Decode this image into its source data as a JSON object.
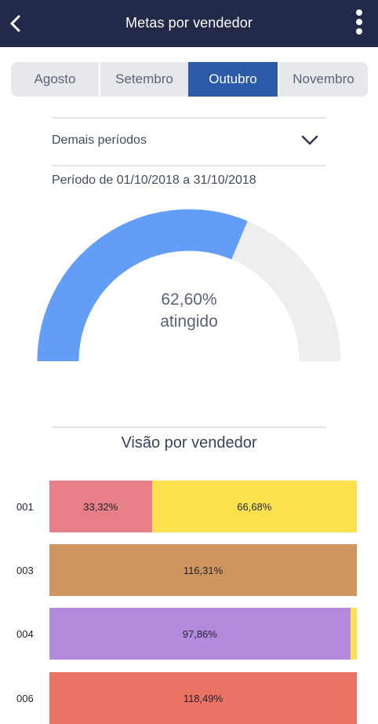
{
  "header": {
    "title": "Metas por vendedor",
    "back_icon": "chevron-left-icon",
    "menu_icon": "more-vertical-icon"
  },
  "months": [
    {
      "label": "Agosto",
      "active": false
    },
    {
      "label": "Setembro",
      "active": false
    },
    {
      "label": "Outubro",
      "active": true
    },
    {
      "label": "Novembro",
      "active": false
    }
  ],
  "periods": {
    "dropdown_label": "Demais períodos",
    "range_text": "Período de 01/10/2018 a 31/10/2018"
  },
  "gauge": {
    "value_text": "62,60%",
    "caption": "atingido",
    "fraction": 0.626,
    "fill_color": "#629ef7",
    "track_color": "#eeeeee"
  },
  "vendor_section": {
    "title": "Visão por vendedor",
    "rows": [
      {
        "code": "001",
        "segments": [
          {
            "label": "33,32%",
            "share": 0.3332,
            "color": "#e67f87"
          },
          {
            "label": "66,68%",
            "share": 0.6668,
            "color": "#fde24f"
          }
        ]
      },
      {
        "code": "003",
        "segments": [
          {
            "label": "116,31%",
            "share": 1.0,
            "color": "#cf955f"
          }
        ]
      },
      {
        "code": "004",
        "segments": [
          {
            "label": "97,86%",
            "share": 0.9786,
            "color": "#b38adc"
          },
          {
            "label": "",
            "share": 0.0214,
            "color": "#fde24f"
          }
        ]
      },
      {
        "code": "006",
        "segments": [
          {
            "label": "118,49%",
            "share": 1.0,
            "color": "#ea7364"
          }
        ]
      }
    ]
  }
}
